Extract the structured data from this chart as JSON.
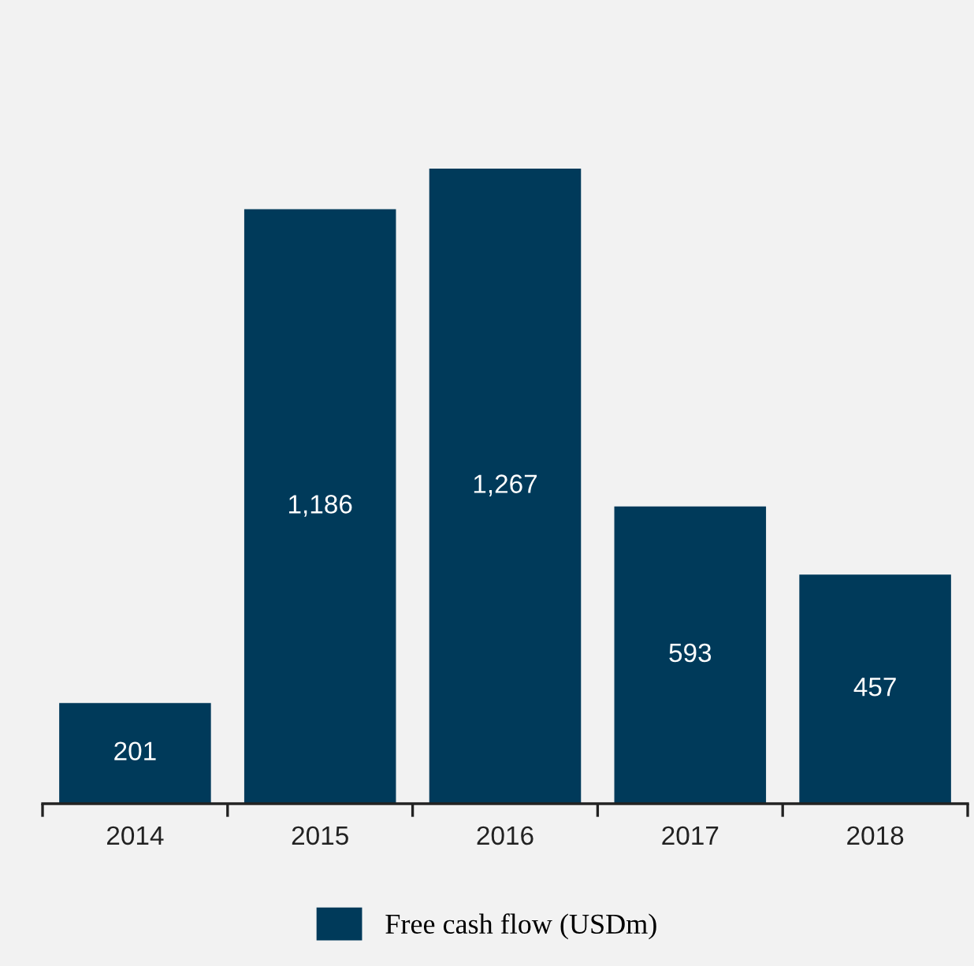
{
  "chart_data": {
    "type": "bar",
    "categories": [
      "2014",
      "2015",
      "2016",
      "2017",
      "2018"
    ],
    "series": [
      {
        "name": "Free cash flow (USDm)",
        "color": "#003a5a",
        "values": [
          201,
          1186,
          1267,
          593,
          457
        ],
        "value_labels": [
          "201",
          "1,186",
          "1,267",
          "593",
          "457"
        ]
      }
    ],
    "legend": "bottom",
    "grid": false
  }
}
